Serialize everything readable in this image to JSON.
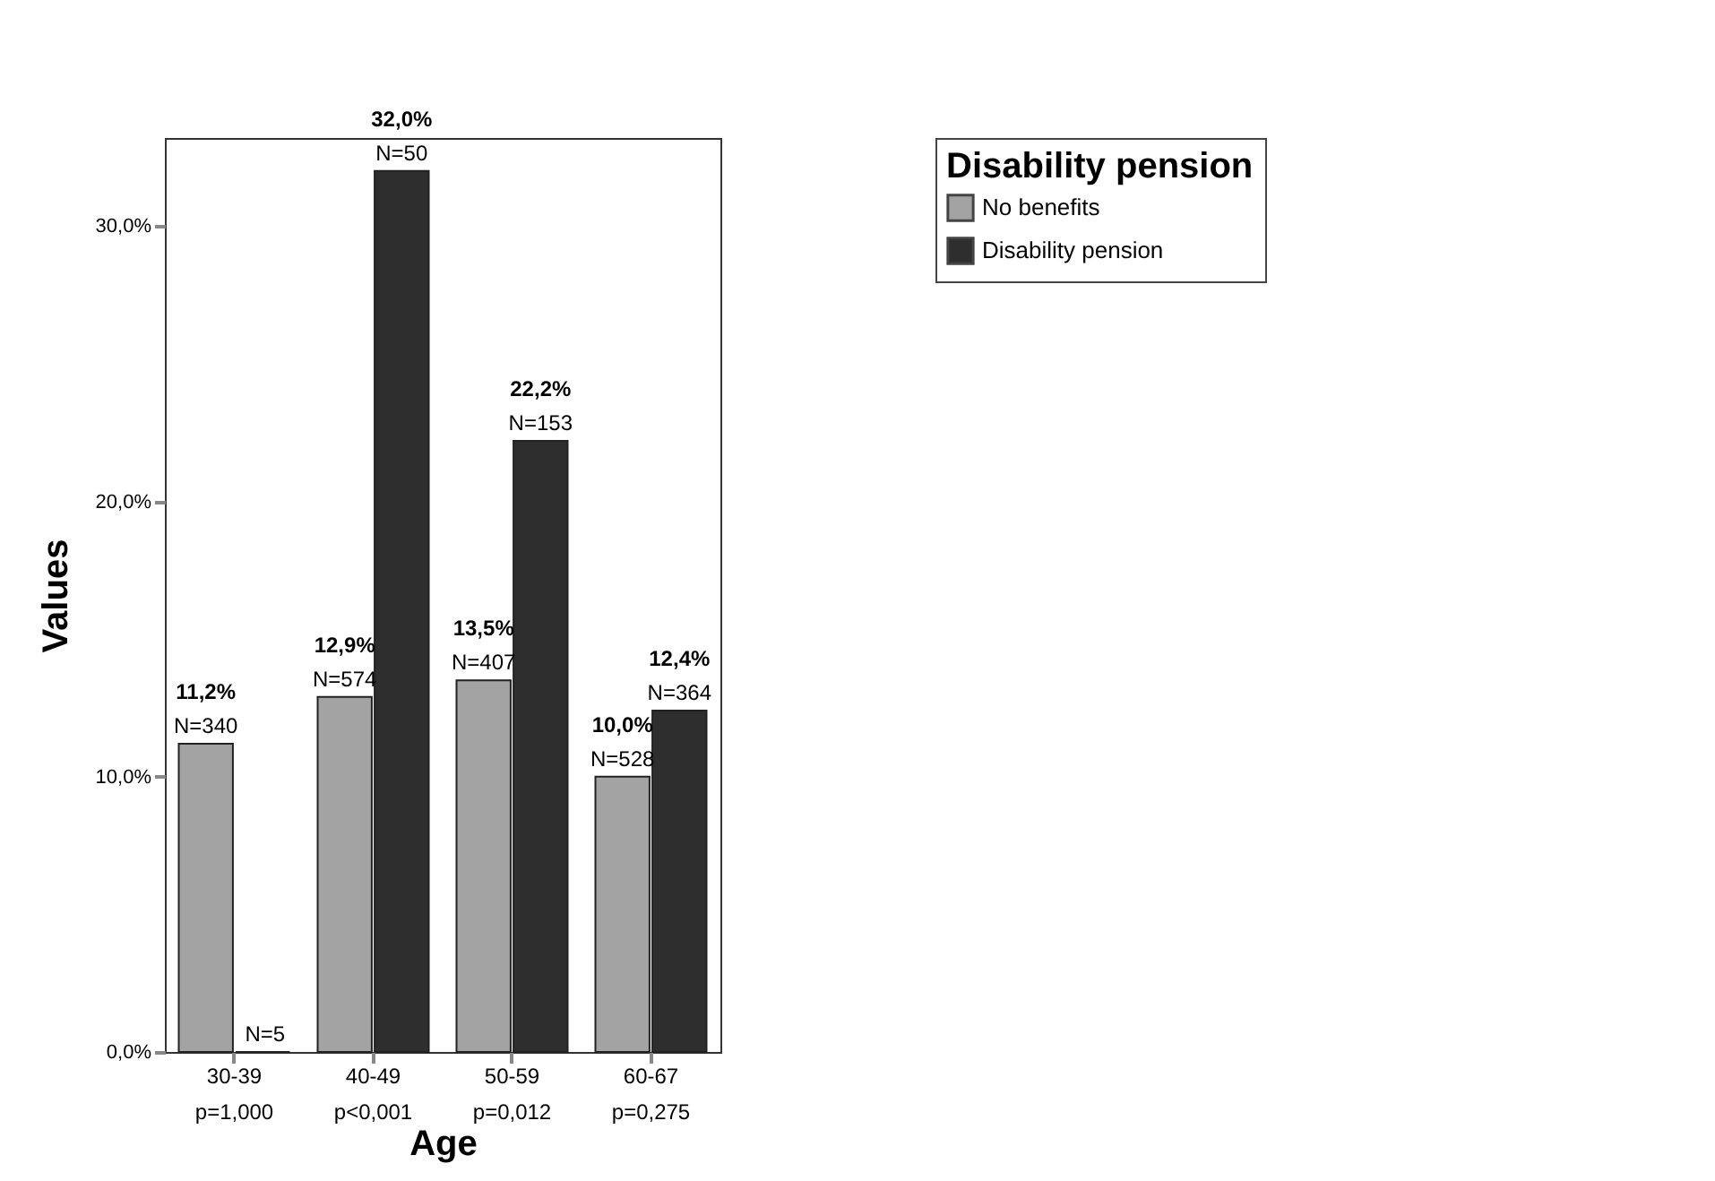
{
  "chart_data": {
    "type": "bar",
    "xlabel": "Age",
    "ylabel": "Values",
    "legend_title": "Disability pension",
    "legend": "top right",
    "grid": false,
    "categories": [
      "30-39\np=1,000",
      "40-49\np<0,001",
      "50-59\np=0,012",
      "60-67\np=0,275"
    ],
    "ylim": [
      0,
      33.2
    ],
    "annotations": [
      {
        "text": "N=5",
        "x": "30-39\np=1,000",
        "y": 0
      }
    ],
    "yticks": [
      {
        "value": 0,
        "label": "0,0%"
      },
      {
        "value": 10,
        "label": "10,0%"
      },
      {
        "value": 20,
        "label": "20,0%"
      },
      {
        "value": 30,
        "label": "30,0%"
      }
    ],
    "series": [
      {
        "name": "No benefits",
        "color": "#a3a3a3",
        "values": [
          11.2,
          12.9,
          13.5,
          10.0
        ],
        "value_labels": [
          "11,2%\nN=340",
          "12,9%\nN=574",
          "13,5%\nN=407",
          "10,0%\nN=528"
        ]
      },
      {
        "name": "Disability pension",
        "color": "#2e2e2e",
        "values": [
          0,
          32.0,
          22.2,
          12.4
        ],
        "value_labels": [
          null,
          "32,0%\nN=50",
          "22,2%\nN=153",
          "12,4%\nN=364"
        ]
      }
    ]
  }
}
